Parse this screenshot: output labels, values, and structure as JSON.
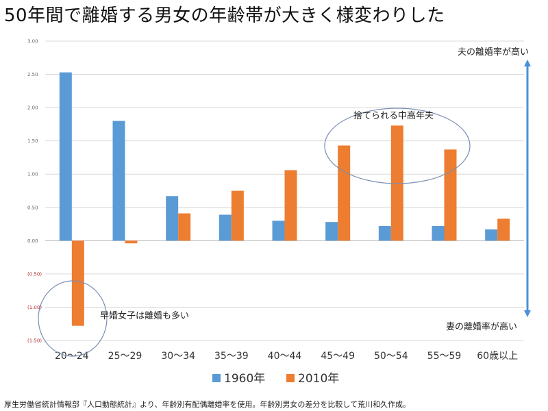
{
  "title": "50年間で離婚する男女の年齢帯が大きく様変わりした",
  "source_note": "厚生労働省統計情報部『人口動態統計』より、年齢別有配偶離婚率を使用。年齢別男女の差分を比較して荒川和久作成。",
  "chart_data": {
    "type": "bar",
    "categories": [
      "20～24",
      "25～29",
      "30～34",
      "35～39",
      "40～44",
      "45～49",
      "50～54",
      "55～59",
      "60歳以上"
    ],
    "series": [
      {
        "name": "1960年",
        "color": "#5b9bd5",
        "values": [
          2.53,
          1.8,
          0.67,
          0.39,
          0.3,
          0.28,
          0.22,
          0.22,
          0.17
        ]
      },
      {
        "name": "2010年",
        "color": "#ed7d31",
        "values": [
          -1.28,
          -0.04,
          0.41,
          0.75,
          1.06,
          1.43,
          1.73,
          1.37,
          0.33
        ]
      }
    ],
    "ylim": [
      -1.5,
      3.0
    ],
    "yticks": [
      "3.00",
      "2.50",
      "2.00",
      "1.50",
      "1.00",
      "0.50",
      "0.00",
      "(0.50)",
      "(1.00)",
      "(1.50)"
    ],
    "ytick_values": [
      3.0,
      2.5,
      2.0,
      1.5,
      1.0,
      0.5,
      0.0,
      -0.5,
      -1.0,
      -1.5
    ],
    "grid": true,
    "legend_position": "bottom",
    "annotations": {
      "top_arrow_label": "夫の離婚率が高い",
      "bottom_arrow_label": "妻の離婚率が高い",
      "middle_aged": "捨てられる中高年夫",
      "early_marriage": "早婚女子は離婚も多い"
    }
  }
}
